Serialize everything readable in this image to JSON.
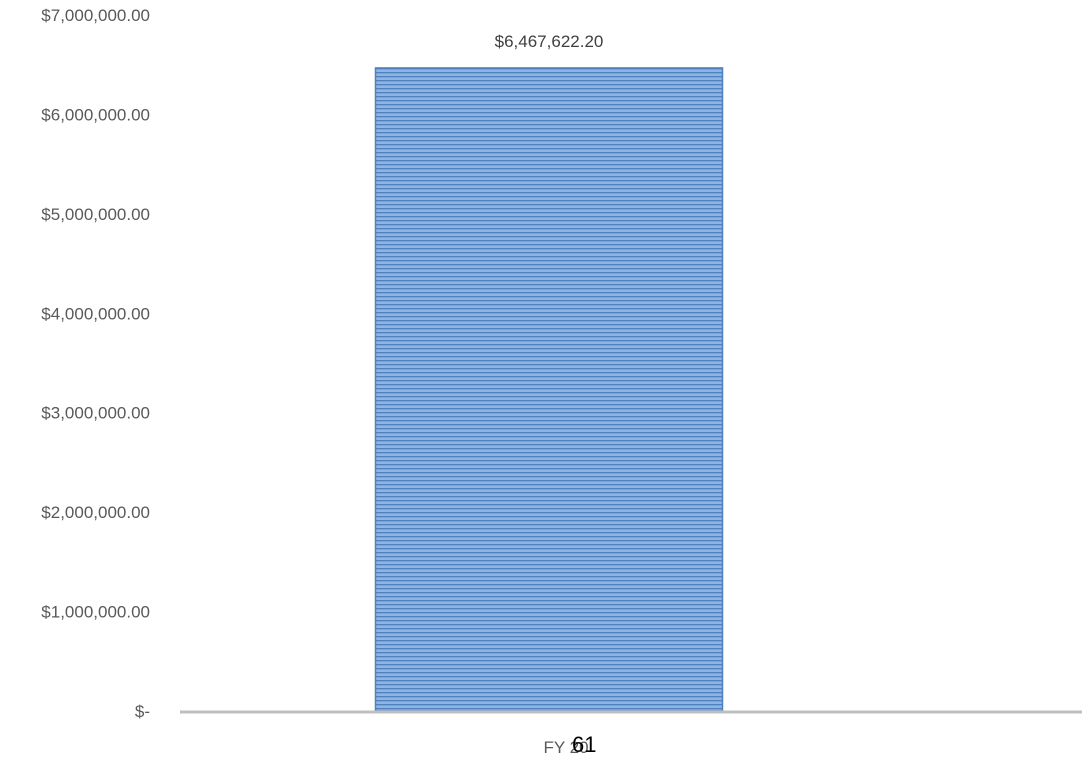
{
  "page": {
    "number": "61"
  },
  "colors": {
    "bar_fill": "#8DB4E2",
    "bar_stripe": "#4F81BD",
    "axis_line": "#BFBFBF",
    "tick_text": "#595959"
  },
  "chart_data": {
    "type": "bar",
    "categories": [
      "FY 20"
    ],
    "series": [
      {
        "values": [
          6467622.2
        ],
        "data_labels": [
          "$6,467,622.20"
        ]
      }
    ],
    "ylim": [
      0,
      7000000
    ],
    "yticks": [
      0,
      1000000,
      2000000,
      3000000,
      4000000,
      5000000,
      6000000,
      7000000
    ],
    "ytick_labels": [
      "$-",
      "$1,000,000.00",
      "$2,000,000.00",
      "$3,000,000.00",
      "$4,000,000.00",
      "$5,000,000.00",
      "$6,000,000.00",
      "$7,000,000.00"
    ],
    "grid": false,
    "legend": "none",
    "bar_pattern": "horizontal-stripes"
  }
}
